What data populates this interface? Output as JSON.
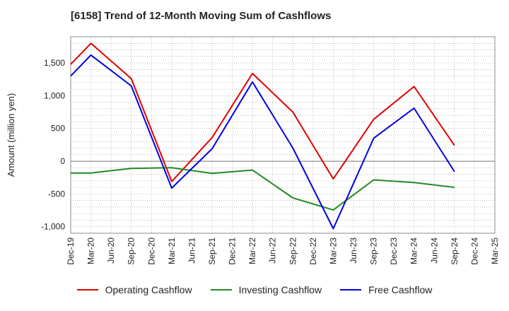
{
  "chart_data": {
    "type": "line",
    "title": "[6158]  Trend of 12-Month Moving Sum of Cashflows",
    "ylabel": "Amount (million yen)",
    "xlabel": "",
    "x": [
      "Dec-19",
      "Mar-20",
      "Jun-20",
      "Sep-20",
      "Dec-20",
      "Mar-21",
      "Jun-21",
      "Sep-21",
      "Dec-21",
      "Mar-22",
      "Jun-22",
      "Sep-22",
      "Dec-22",
      "Mar-23",
      "Jun-23",
      "Sep-23",
      "Dec-23",
      "Mar-24",
      "Jun-24",
      "Sep-24",
      "Dec-24",
      "Mar-25"
    ],
    "ylim": [
      -1100,
      1900
    ],
    "yticks": [
      1500,
      1000,
      500,
      0,
      -500,
      -1000
    ],
    "ytick_labels": [
      "1,500",
      "1,000",
      "500",
      "0",
      "-500",
      "-1,000"
    ],
    "grid": true,
    "legend_position": "bottom",
    "series": [
      {
        "name": "Operating Cashflow",
        "color": "#e00000",
        "values": [
          1480,
          1800,
          null,
          1260,
          null,
          -310,
          null,
          360,
          null,
          1340,
          null,
          750,
          null,
          -270,
          null,
          640,
          null,
          1140,
          null,
          240,
          null,
          null
        ]
      },
      {
        "name": "Investing Cashflow",
        "color": "#228b22",
        "values": [
          -180,
          -180,
          null,
          -110,
          null,
          -100,
          null,
          -185,
          null,
          -135,
          null,
          -560,
          null,
          -745,
          null,
          -285,
          null,
          -325,
          null,
          -400,
          null,
          null
        ]
      },
      {
        "name": "Free Cashflow",
        "color": "#0000dd",
        "values": [
          1300,
          1620,
          null,
          1150,
          null,
          -410,
          null,
          190,
          null,
          1210,
          null,
          200,
          null,
          -1030,
          null,
          350,
          null,
          810,
          null,
          -160,
          null,
          null
        ]
      }
    ]
  }
}
